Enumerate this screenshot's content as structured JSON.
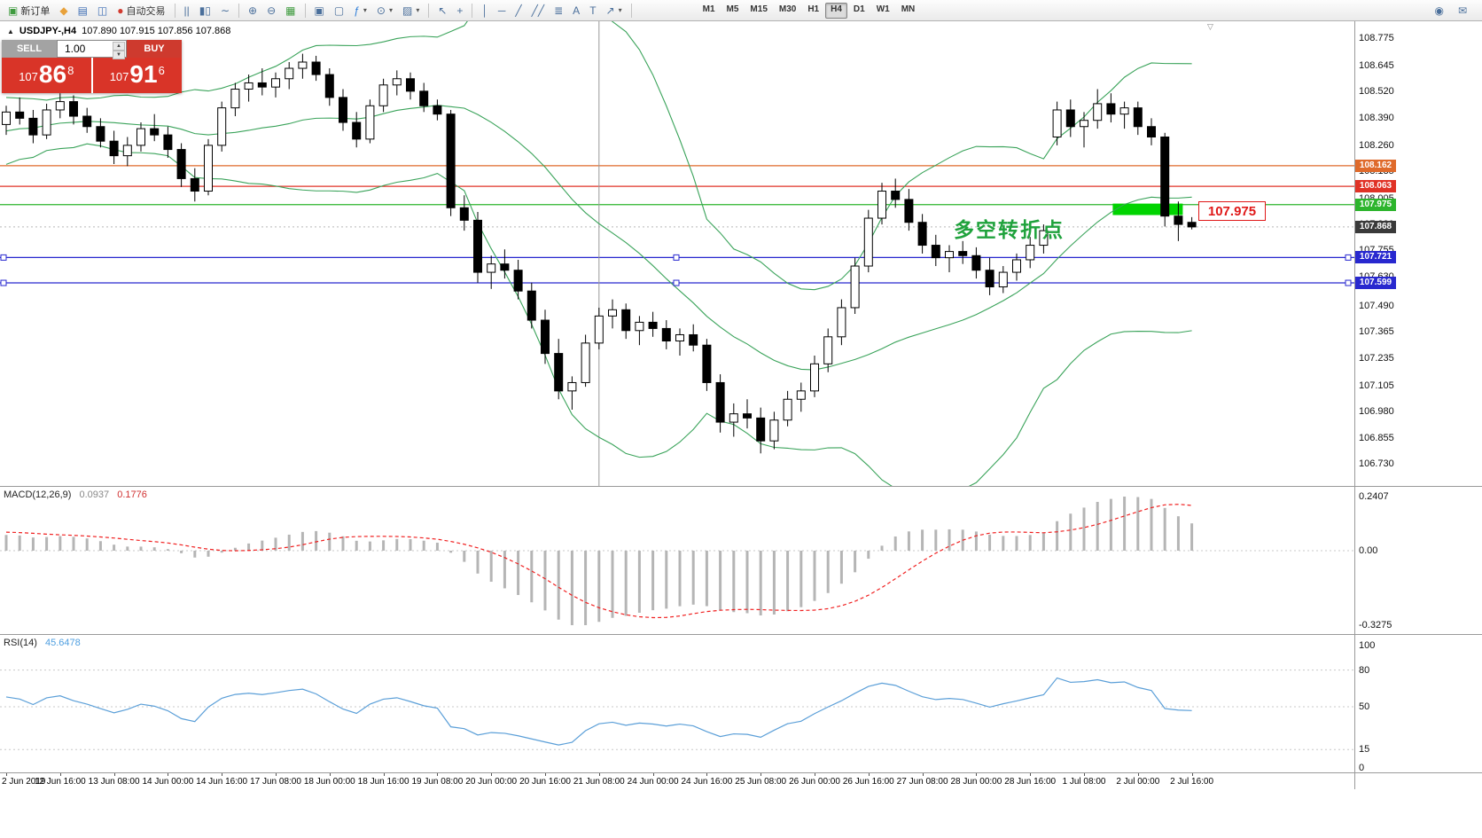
{
  "chart": {
    "marker": "▲",
    "symbol": "USDJPY-,H4",
    "ohlc": "107.890 107.915 107.856 107.868",
    "shift_marker": "▽"
  },
  "order_panel": {
    "sell_label": "SELL",
    "buy_label": "BUY",
    "volume": "1.00",
    "spin_up": "▲",
    "spin_down": "▼",
    "sell": {
      "prefix": "107",
      "big": "86",
      "sup": "8"
    },
    "buy": {
      "prefix": "107",
      "big": "91",
      "sup": "6"
    }
  },
  "toolbar": {
    "items": [
      {
        "type": "button",
        "name": "new-order-button",
        "glyph": "▣",
        "glyph_color": "#3f9b3f",
        "label": "新订单"
      },
      {
        "type": "button",
        "name": "profiles-button",
        "glyph": "◆",
        "glyph_color": "#e8a13a"
      },
      {
        "type": "button",
        "name": "market-watch-button",
        "glyph": "▤",
        "glyph_color": "#3f6fb5"
      },
      {
        "type": "button",
        "name": "data-window-button",
        "glyph": "◫",
        "glyph_color": "#3f6fb5"
      },
      {
        "type": "button",
        "name": "autotrading-button",
        "glyph": "●",
        "glyph_color": "#d23b2f",
        "label": "自动交易"
      },
      {
        "type": "sep"
      },
      {
        "type": "button",
        "name": "bar-chart-type-button",
        "glyph": "||"
      },
      {
        "type": "button",
        "name": "candlestick-chart-type-button",
        "glyph": "▮▯"
      },
      {
        "type": "button",
        "name": "line-chart-type-button",
        "glyph": "∼"
      },
      {
        "type": "sep"
      },
      {
        "type": "button",
        "name": "zoom-in-button",
        "glyph": "⊕"
      },
      {
        "type": "button",
        "name": "zoom-out-button",
        "glyph": "⊖"
      },
      {
        "type": "button",
        "name": "tile-windows-button",
        "glyph": "▦",
        "glyph_color": "#3f9b3f"
      },
      {
        "type": "sep"
      },
      {
        "type": "button",
        "name": "arrange-windows-button",
        "glyph": "▣"
      },
      {
        "type": "button",
        "name": "cascade-windows-button",
        "glyph": "▢"
      },
      {
        "type": "button",
        "name": "indicators-button",
        "glyph": "ƒ",
        "glyph_color": "#2f7ed8",
        "caret": true
      },
      {
        "type": "button",
        "name": "periods-button",
        "glyph": "⊙",
        "caret": true
      },
      {
        "type": "button",
        "name": "templates-button",
        "glyph": "▨",
        "caret": true
      },
      {
        "type": "sep"
      },
      {
        "type": "button",
        "name": "cursor-button",
        "glyph": "↖"
      },
      {
        "type": "button",
        "name": "crosshair-button",
        "glyph": "+"
      },
      {
        "type": "sep"
      },
      {
        "type": "button",
        "name": "vertical-line-button",
        "glyph": "│"
      },
      {
        "type": "button",
        "name": "horizontal-line-button",
        "glyph": "─"
      },
      {
        "type": "button",
        "name": "trendline-button",
        "glyph": "╱"
      },
      {
        "type": "button",
        "name": "equidistant-channel-button",
        "glyph": "╱╱"
      },
      {
        "type": "button",
        "name": "fibonacci-button",
        "glyph": "≣"
      },
      {
        "type": "button",
        "name": "text-button",
        "glyph": "A"
      },
      {
        "type": "button",
        "name": "text-label-button",
        "glyph": "T"
      },
      {
        "type": "button",
        "name": "arrows-button",
        "glyph": "↗",
        "caret": true
      },
      {
        "type": "sep"
      }
    ],
    "timeframes": {
      "options": [
        "M1",
        "M5",
        "M15",
        "M30",
        "H1",
        "H4",
        "D1",
        "W1",
        "MN"
      ],
      "active": "H4"
    },
    "right_icons": [
      {
        "name": "price-alert-icon",
        "glyph": "◉"
      },
      {
        "name": "mail-icon",
        "glyph": "✉"
      }
    ]
  },
  "price_axis": {
    "labels": [
      "108.775",
      "108.645",
      "108.520",
      "108.390",
      "108.260",
      "108.135",
      "108.005",
      "107.880",
      "107.755",
      "107.630",
      "107.490",
      "107.365",
      "107.235",
      "107.105",
      "106.980",
      "106.855",
      "106.730"
    ],
    "badges": [
      {
        "name": "orange-line-price",
        "value": "108.162",
        "color": "#df6a2b"
      },
      {
        "name": "red-line-price",
        "value": "108.063",
        "color": "#e03226"
      },
      {
        "name": "green-line-price",
        "value": "107.975",
        "color": "#2db52d"
      },
      {
        "name": "current-price",
        "value": "107.868",
        "color": "#3a3a3a"
      },
      {
        "name": "blue-line-price-1",
        "value": "107.721",
        "color": "#2828cf"
      },
      {
        "name": "blue-line-price-2",
        "value": "107.599",
        "color": "#2828cf"
      }
    ]
  },
  "annotations": {
    "turning_point_text": "多空转折点",
    "turning_point_color": "#1fa23c",
    "price_box_text": "107.975"
  },
  "macd": {
    "name": "MACD(12,26,9)",
    "value_main": "0.0937",
    "value_signal": "0.1776",
    "axis": [
      "0.2407",
      "0.00",
      "-0.3275"
    ]
  },
  "rsi": {
    "name": "RSI(14)",
    "value": "45.6478",
    "axis": [
      "100",
      "80",
      "50",
      "15",
      "0"
    ]
  },
  "time_axis": {
    "labels": [
      {
        "text": "2 Jun 2019",
        "index": 0,
        "align": "left"
      },
      {
        "text": "12 Jun 16:00",
        "index": 4
      },
      {
        "text": "13 Jun 08:00",
        "index": 8
      },
      {
        "text": "14 Jun 00:00",
        "index": 12
      },
      {
        "text": "14 Jun 16:00",
        "index": 16
      },
      {
        "text": "17 Jun 08:00",
        "index": 20
      },
      {
        "text": "18 Jun 00:00",
        "index": 24
      },
      {
        "text": "18 Jun 16:00",
        "index": 28
      },
      {
        "text": "19 Jun 08:00",
        "index": 32
      },
      {
        "text": "20 Jun 00:00",
        "index": 36
      },
      {
        "text": "20 Jun 16:00",
        "index": 40
      },
      {
        "text": "21 Jun 08:00",
        "index": 44
      },
      {
        "text": "24 Jun 00:00",
        "index": 48
      },
      {
        "text": "24 Jun 16:00",
        "index": 52
      },
      {
        "text": "25 Jun 08:00",
        "index": 56
      },
      {
        "text": "26 Jun 00:00",
        "index": 60
      },
      {
        "text": "26 Jun 16:00",
        "index": 64
      },
      {
        "text": "27 Jun 08:00",
        "index": 68
      },
      {
        "text": "28 Jun 00:00",
        "index": 72
      },
      {
        "text": "28 Jun 16:00",
        "index": 76
      },
      {
        "text": "1 Jul 08:00",
        "index": 80
      },
      {
        "text": "2 Jul 00:00",
        "index": 84
      },
      {
        "text": "2 Jul 16:00",
        "index": 88
      }
    ]
  },
  "chart_data": {
    "type": "candlestick",
    "symbol": "USDJPY",
    "timeframe": "H4",
    "ylim": {
      "min": 106.73,
      "max": 108.775
    },
    "warmup_closes": [
      108.02,
      107.96,
      108.05,
      108.1,
      108.04,
      107.98,
      108.06,
      108.12,
      108.08,
      108.16,
      108.1,
      108.18,
      108.24,
      108.17,
      108.26,
      108.32,
      108.25,
      108.34,
      108.28,
      108.38,
      108.44,
      108.36,
      108.3,
      108.4,
      108.46,
      108.38,
      108.32,
      108.42,
      108.36,
      108.3
    ],
    "candles": [
      [
        108.36,
        108.45,
        108.31,
        108.42
      ],
      [
        108.42,
        108.49,
        108.36,
        108.39
      ],
      [
        108.39,
        108.43,
        108.27,
        108.31
      ],
      [
        108.31,
        108.46,
        108.29,
        108.43
      ],
      [
        108.43,
        108.51,
        108.39,
        108.47
      ],
      [
        108.47,
        108.5,
        108.36,
        108.4
      ],
      [
        108.4,
        108.44,
        108.32,
        108.35
      ],
      [
        108.35,
        108.39,
        108.25,
        108.28
      ],
      [
        108.28,
        108.33,
        108.17,
        108.21
      ],
      [
        108.21,
        108.3,
        108.16,
        108.26
      ],
      [
        108.26,
        108.37,
        108.23,
        108.34
      ],
      [
        108.34,
        108.41,
        108.28,
        108.31
      ],
      [
        108.31,
        108.35,
        108.2,
        108.24
      ],
      [
        108.24,
        108.27,
        108.06,
        108.1
      ],
      [
        108.1,
        108.15,
        107.99,
        108.04
      ],
      [
        108.04,
        108.29,
        108.02,
        108.26
      ],
      [
        108.26,
        108.47,
        108.23,
        108.44
      ],
      [
        108.44,
        108.56,
        108.4,
        108.53
      ],
      [
        108.53,
        108.6,
        108.47,
        108.56
      ],
      [
        108.56,
        108.63,
        108.5,
        108.54
      ],
      [
        108.54,
        108.61,
        108.49,
        108.58
      ],
      [
        108.58,
        108.66,
        108.53,
        108.63
      ],
      [
        108.63,
        108.7,
        108.58,
        108.66
      ],
      [
        108.66,
        108.69,
        108.57,
        108.6
      ],
      [
        108.6,
        108.63,
        108.45,
        108.49
      ],
      [
        108.49,
        108.53,
        108.33,
        108.37
      ],
      [
        108.37,
        108.42,
        108.25,
        108.29
      ],
      [
        108.29,
        108.48,
        108.27,
        108.45
      ],
      [
        108.45,
        108.58,
        108.42,
        108.55
      ],
      [
        108.55,
        108.62,
        108.5,
        108.58
      ],
      [
        108.58,
        108.61,
        108.48,
        108.52
      ],
      [
        108.52,
        108.56,
        108.42,
        108.45
      ],
      [
        108.45,
        108.48,
        108.38,
        108.41
      ],
      [
        108.41,
        108.43,
        107.92,
        107.96
      ],
      [
        107.96,
        108.02,
        107.85,
        107.9
      ],
      [
        107.9,
        107.94,
        107.6,
        107.65
      ],
      [
        107.65,
        107.73,
        107.57,
        107.69
      ],
      [
        107.69,
        107.76,
        107.62,
        107.66
      ],
      [
        107.66,
        107.71,
        107.52,
        107.56
      ],
      [
        107.56,
        107.6,
        107.38,
        107.42
      ],
      [
        107.42,
        107.47,
        107.21,
        107.26
      ],
      [
        107.26,
        107.33,
        107.04,
        107.08
      ],
      [
        107.08,
        107.15,
        106.99,
        107.12
      ],
      [
        107.12,
        107.35,
        107.1,
        107.31
      ],
      [
        107.31,
        107.48,
        107.28,
        107.44
      ],
      [
        107.44,
        107.52,
        107.38,
        107.47
      ],
      [
        107.47,
        107.5,
        107.33,
        107.37
      ],
      [
        107.37,
        107.44,
        107.3,
        107.41
      ],
      [
        107.41,
        107.46,
        107.34,
        107.38
      ],
      [
        107.38,
        107.42,
        107.28,
        107.32
      ],
      [
        107.32,
        107.38,
        107.25,
        107.35
      ],
      [
        107.35,
        107.4,
        107.27,
        107.3
      ],
      [
        107.3,
        107.33,
        107.08,
        107.12
      ],
      [
        107.12,
        107.16,
        106.88,
        106.93
      ],
      [
        106.93,
        107.02,
        106.86,
        106.97
      ],
      [
        106.97,
        107.04,
        106.9,
        106.95
      ],
      [
        106.95,
        107.0,
        106.78,
        106.84
      ],
      [
        106.84,
        106.98,
        106.8,
        106.94
      ],
      [
        106.94,
        107.08,
        106.91,
        107.04
      ],
      [
        107.04,
        107.12,
        106.98,
        107.08
      ],
      [
        107.08,
        107.25,
        107.05,
        107.21
      ],
      [
        107.21,
        107.38,
        107.17,
        107.34
      ],
      [
        107.34,
        107.52,
        107.3,
        107.48
      ],
      [
        107.48,
        107.72,
        107.45,
        107.68
      ],
      [
        107.68,
        107.95,
        107.65,
        107.91
      ],
      [
        107.91,
        108.08,
        107.88,
        108.04
      ],
      [
        108.04,
        108.1,
        107.96,
        108.0
      ],
      [
        108.0,
        108.05,
        107.85,
        107.89
      ],
      [
        107.89,
        107.93,
        107.74,
        107.78
      ],
      [
        107.78,
        107.83,
        107.68,
        107.72
      ],
      [
        107.72,
        107.78,
        107.65,
        107.75
      ],
      [
        107.75,
        107.8,
        107.69,
        107.73
      ],
      [
        107.73,
        107.77,
        107.62,
        107.66
      ],
      [
        107.66,
        107.72,
        107.54,
        107.58
      ],
      [
        107.58,
        107.68,
        107.55,
        107.65
      ],
      [
        107.65,
        107.74,
        107.61,
        107.71
      ],
      [
        107.71,
        107.82,
        107.67,
        107.78
      ],
      [
        107.78,
        107.88,
        107.74,
        107.85
      ],
      [
        108.3,
        108.47,
        108.26,
        108.43
      ],
      [
        108.43,
        108.48,
        108.3,
        108.35
      ],
      [
        108.35,
        108.42,
        108.25,
        108.38
      ],
      [
        108.38,
        108.53,
        108.34,
        108.46
      ],
      [
        108.46,
        108.51,
        108.37,
        108.41
      ],
      [
        108.41,
        108.47,
        108.34,
        108.44
      ],
      [
        108.44,
        108.47,
        108.31,
        108.35
      ],
      [
        108.35,
        108.39,
        108.26,
        108.3
      ],
      [
        108.3,
        108.32,
        107.87,
        107.92
      ],
      [
        107.92,
        107.99,
        107.8,
        107.88
      ],
      [
        107.89,
        107.915,
        107.856,
        107.868
      ]
    ],
    "overlays": {
      "bollinger": {
        "period": 20,
        "deviation": 2,
        "color": "#3aa35a"
      },
      "hlines": [
        {
          "price": 108.162,
          "color": "#df6a2b"
        },
        {
          "price": 108.063,
          "color": "#e03226"
        },
        {
          "price": 107.975,
          "color": "#2db52d"
        },
        {
          "price": 107.721,
          "color": "#2828cf",
          "handles": true
        },
        {
          "price": 107.599,
          "color": "#2828cf",
          "handles": true
        }
      ],
      "current_price_line": {
        "price": 107.868,
        "color": "#b8b8b8"
      },
      "vline_index": 44,
      "rectangle": {
        "i1": 82,
        "i2": 87,
        "price_top": 107.98,
        "price_bottom": 107.925,
        "color": "#00d400"
      }
    },
    "macd": {
      "fast": 12,
      "slow": 26,
      "signal": 9,
      "range": {
        "max": 0.2407,
        "min": -0.3275
      }
    },
    "rsi": {
      "period": 14,
      "levels": [
        80,
        50,
        15
      ]
    }
  }
}
